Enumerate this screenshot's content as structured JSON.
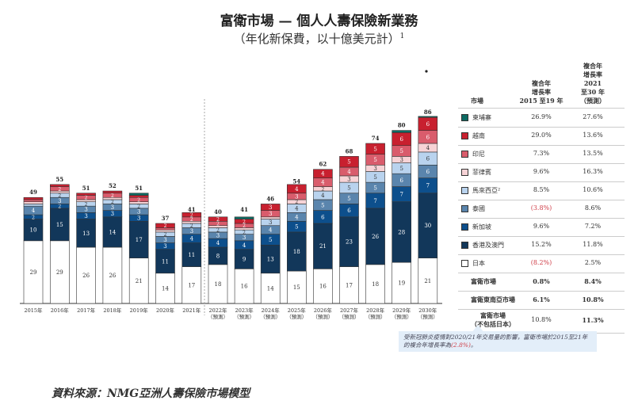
{
  "chart_data": {
    "type": "bar",
    "stacked": true,
    "title": "富衛市場 — 個人人壽保險新業務",
    "subtitle": "（年化新保費，以十億美元計）",
    "subtitle_sup": "1",
    "categories": [
      "2015年",
      "2016年",
      "2017年",
      "2018年",
      "2019年",
      "2020年",
      "2021年",
      "2022年",
      "2023年",
      "2024年",
      "2025年",
      "2026年",
      "2027年",
      "2028年",
      "2029年",
      "2030年"
    ],
    "forecast_label": "（預測）",
    "forecast_from_index": 7,
    "totals": [
      49,
      55,
      51,
      52,
      51,
      37,
      41,
      40,
      41,
      46,
      54,
      62,
      68,
      74,
      80,
      86
    ],
    "series": [
      {
        "name": "日本",
        "color": "#ffffff",
        "values": [
          29,
          29,
          26,
          26,
          21,
          14,
          17,
          18,
          16,
          14,
          15,
          16,
          17,
          18,
          19,
          21
        ]
      },
      {
        "name": "香港及澳門",
        "color": "#12375a",
        "values": [
          10,
          15,
          13,
          14,
          17,
          11,
          11,
          8,
          9,
          13,
          18,
          21,
          23,
          26,
          28,
          30
        ]
      },
      {
        "name": "新加坡",
        "color": "#0d4f8c",
        "values": [
          2,
          2,
          3,
          3,
          3,
          3,
          4,
          4,
          4,
          5,
          5,
          6,
          6,
          7,
          7,
          7
        ]
      },
      {
        "name": "泰國",
        "color": "#5a85ad",
        "values": [
          4,
          3,
          3,
          3,
          3,
          3,
          3,
          3,
          3,
          4,
          4,
          5,
          5,
          5,
          6,
          6
        ]
      },
      {
        "name": "馬來西亞²",
        "color": "#b9d3ee",
        "values": [
          1,
          2,
          2,
          2,
          2,
          2,
          2,
          2,
          2,
          3,
          4,
          4,
          5,
          5,
          5,
          6
        ]
      },
      {
        "name": "菲律賓",
        "color": "#f7d3d6",
        "values": [
          1,
          1,
          1,
          1,
          1,
          1,
          1,
          1,
          1,
          1,
          2,
          2,
          3,
          3,
          3,
          4
        ]
      },
      {
        "name": "印尼",
        "color": "#d95c6c",
        "values": [
          1,
          2,
          2,
          2,
          2,
          1,
          2,
          2,
          2,
          3,
          3,
          4,
          4,
          5,
          5,
          6
        ]
      },
      {
        "name": "越南",
        "color": "#c8202f",
        "values": [
          1,
          1,
          1,
          1,
          1,
          2,
          2,
          2,
          2,
          3,
          4,
          4,
          5,
          5,
          6,
          6
        ]
      },
      {
        "name": "柬埔寨",
        "color": "#0e6b63",
        "values": [
          0,
          0,
          0,
          0,
          1,
          0,
          0,
          0,
          1,
          0,
          0,
          0,
          0,
          0,
          1,
          0.5
        ]
      }
    ]
  },
  "table": {
    "header_market": "市場",
    "header_col1": [
      "複合年",
      "增長率",
      "2015 至19 年"
    ],
    "header_col2": [
      "複合年",
      "增長率",
      "2021",
      "至30 年",
      "（預測）"
    ],
    "rows": [
      {
        "label": "柬埔寨",
        "color": "#0e6b63",
        "c1": "26.9%",
        "c2": "27.6%"
      },
      {
        "label": "越南",
        "color": "#c8202f",
        "c1": "29.0%",
        "c2": "13.6%"
      },
      {
        "label": "印尼",
        "color": "#d95c6c",
        "c1": "7.3%",
        "c2": "13.5%"
      },
      {
        "label": "菲律賓",
        "color": "#f7d3d6",
        "c1": "9.6%",
        "c2": "16.3%"
      },
      {
        "label": "馬來西亞²",
        "color": "#b9d3ee",
        "c1": "8.5%",
        "c2": "10.6%"
      },
      {
        "label": "泰國",
        "color": "#5a85ad",
        "c1": "(3.8%)",
        "c2": "8.6%",
        "neg": true
      },
      {
        "label": "新加坡",
        "color": "#0d4f8c",
        "c1": "9.6%",
        "c2": "7.2%"
      },
      {
        "label": "香港及澳門",
        "color": "#12375a",
        "c1": "15.2%",
        "c2": "11.8%"
      },
      {
        "label": "日本",
        "color": "#ffffff",
        "c1": "(8.2%)",
        "c2": "2.5%",
        "neg": true
      }
    ],
    "totals": [
      {
        "label": "富衛市場",
        "c1": "0.8%",
        "c2": "8.4%"
      },
      {
        "label": "富衛東南亞市場",
        "c1": "6.1%",
        "c2": "10.8%"
      },
      {
        "label": "富衛市場",
        "label2": "（不包括日本）",
        "c1": "10.8%",
        "c2": "11.3%"
      }
    ]
  },
  "note": {
    "text": "受新冠肺炎疫情對2020/21年交易量的影響，富衛市場於2015至21年的複合年增長率為",
    "value": "(2.8%)",
    "end": "。"
  },
  "source": "資料來源：NMG亞洲人壽保險市場模型"
}
